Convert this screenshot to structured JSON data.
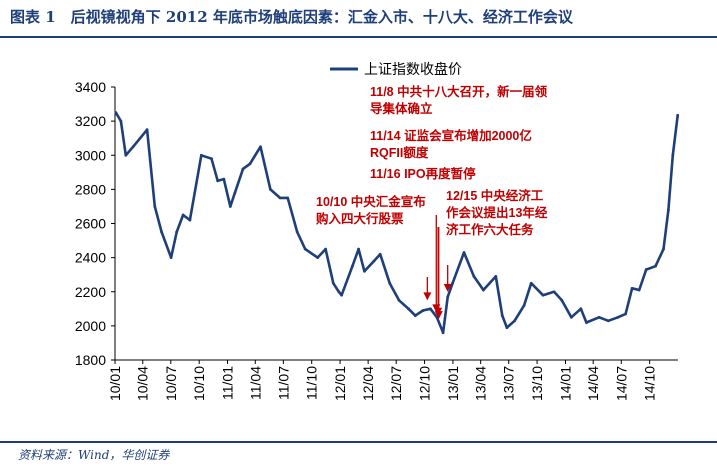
{
  "figure_title": "图表 1　后视镜视角下 2012 年底市场触底因素：汇金入市、十八大、经济工作会议",
  "source": "资料来源：Wind，华创证券",
  "colors": {
    "title": "#1f3f7a",
    "series": "#1f3f7a",
    "annotation": "#c00000",
    "axis": "#000000"
  },
  "chart_data": {
    "type": "line",
    "title": "",
    "xlabel": "",
    "ylabel": "",
    "ylim": [
      1800,
      3400
    ],
    "yticks": [
      1800,
      2000,
      2200,
      2400,
      2600,
      2800,
      3000,
      3200,
      3400
    ],
    "x_range": [
      "2010-01",
      "2015-01"
    ],
    "xticks": [
      "10/01",
      "10/04",
      "10/07",
      "10/10",
      "11/01",
      "11/04",
      "11/07",
      "11/10",
      "12/01",
      "12/04",
      "12/07",
      "12/10",
      "13/01",
      "13/04",
      "13/07",
      "13/10",
      "14/01",
      "14/04",
      "14/07",
      "14/10"
    ],
    "legend_position": "top-right",
    "grid": false,
    "series": [
      {
        "name": "上证指数收盘价",
        "x": [
          "2010-01-04",
          "2010-01-20",
          "2010-02-05",
          "2010-03-01",
          "2010-04-15",
          "2010-05-10",
          "2010-06-01",
          "2010-07-02",
          "2010-07-20",
          "2010-08-10",
          "2010-09-01",
          "2010-10-08",
          "2010-11-10",
          "2010-11-30",
          "2010-12-20",
          "2011-01-10",
          "2011-01-25",
          "2011-02-20",
          "2011-03-15",
          "2011-04-18",
          "2011-05-20",
          "2011-06-20",
          "2011-07-15",
          "2011-08-15",
          "2011-09-10",
          "2011-10-20",
          "2011-11-15",
          "2011-12-10",
          "2011-12-28",
          "2012-01-06",
          "2012-02-10",
          "2012-03-01",
          "2012-03-20",
          "2012-04-20",
          "2012-05-10",
          "2012-06-10",
          "2012-07-10",
          "2012-08-10",
          "2012-09-01",
          "2012-09-26",
          "2012-10-20",
          "2012-11-10",
          "2012-11-30",
          "2012-12-15",
          "2012-12-31",
          "2013-02-06",
          "2013-03-10",
          "2013-04-10",
          "2013-05-20",
          "2013-06-10",
          "2013-06-25",
          "2013-07-20",
          "2013-08-20",
          "2013-09-12",
          "2013-10-20",
          "2013-11-25",
          "2013-12-20",
          "2014-01-20",
          "2014-02-20",
          "2014-03-10",
          "2014-04-20",
          "2014-05-20",
          "2014-06-20",
          "2014-07-15",
          "2014-08-05",
          "2014-08-28",
          "2014-09-20",
          "2014-10-20",
          "2014-11-15",
          "2014-12-01",
          "2014-12-15",
          "2014-12-31"
        ],
        "values": [
          3250,
          3200,
          3000,
          3050,
          3150,
          2700,
          2550,
          2400,
          2550,
          2650,
          2620,
          3000,
          2980,
          2850,
          2860,
          2700,
          2780,
          2920,
          2950,
          3050,
          2800,
          2750,
          2750,
          2550,
          2450,
          2400,
          2450,
          2250,
          2200,
          2180,
          2350,
          2450,
          2320,
          2380,
          2420,
          2250,
          2150,
          2100,
          2060,
          2090,
          2100,
          2050,
          1960,
          2170,
          2250,
          2430,
          2290,
          2210,
          2290,
          2060,
          1990,
          2030,
          2120,
          2250,
          2180,
          2200,
          2150,
          2050,
          2100,
          2020,
          2050,
          2030,
          2050,
          2070,
          2220,
          2210,
          2330,
          2350,
          2450,
          2680,
          3000,
          3234
        ]
      }
    ],
    "annotations": [
      {
        "label_lines": [
          "11/8  中共十八大召开，新一届领",
          "导集体确立"
        ],
        "date": "2012-11-08",
        "value": 2050
      },
      {
        "label_lines": [
          "11/14  证监会宣布增加2000亿",
          "RQFII额度"
        ],
        "date": "2012-11-14",
        "value": 2030
      },
      {
        "label_lines": [
          "11/16  IPO再度暂停"
        ],
        "date": "2012-11-16",
        "value": 2010
      },
      {
        "label_lines": [
          "10/10  中央汇金宣布",
          "购入四大行股票"
        ],
        "date": "2012-10-10",
        "value": 2120
      },
      {
        "label_lines": [
          "12/15  中央经济工",
          "作会议提出13年经",
          "济工作六大任务"
        ],
        "date": "2012-12-15",
        "value": 2170
      }
    ]
  }
}
